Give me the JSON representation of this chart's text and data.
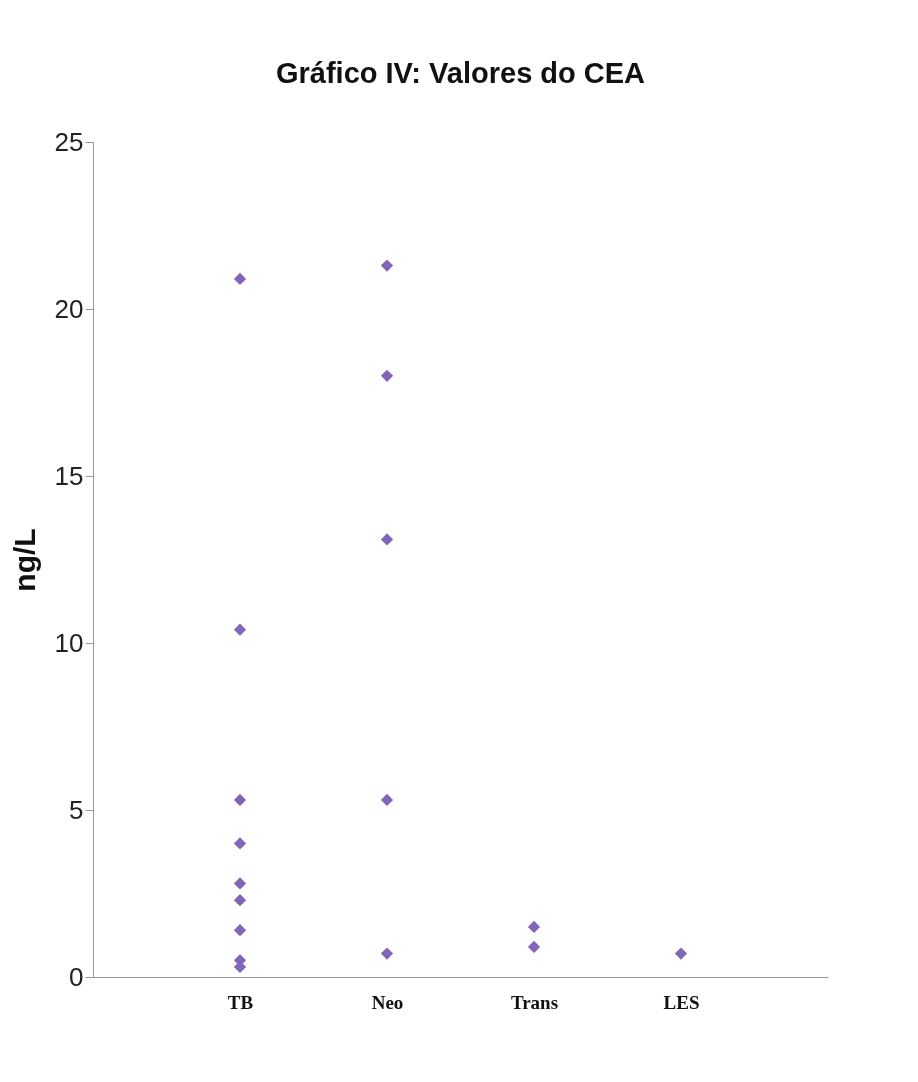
{
  "chart_data": {
    "type": "scatter",
    "title": "Gráfico IV: Valores do CEA",
    "ylabel": "ng/L",
    "categories": [
      "TB",
      "Neo",
      "Trans",
      "LES"
    ],
    "series": [
      {
        "color": "#7f66b8",
        "x": [
          "TB",
          "TB",
          "TB",
          "TB",
          "TB",
          "TB",
          "TB",
          "TB",
          "TB",
          "Neo",
          "Neo",
          "Neo",
          "Neo",
          "Neo",
          "Trans",
          "Trans",
          "LES"
        ],
        "values": [
          20.9,
          10.4,
          5.3,
          4.0,
          2.8,
          2.3,
          1.4,
          0.5,
          0.3,
          21.3,
          18.0,
          13.1,
          5.3,
          0.7,
          1.5,
          0.9,
          0.7
        ]
      }
    ],
    "ylim": [
      0,
      25
    ],
    "yticks": [
      0,
      5,
      10,
      15,
      20,
      25
    ],
    "marker": "diamond",
    "grid": false
  }
}
